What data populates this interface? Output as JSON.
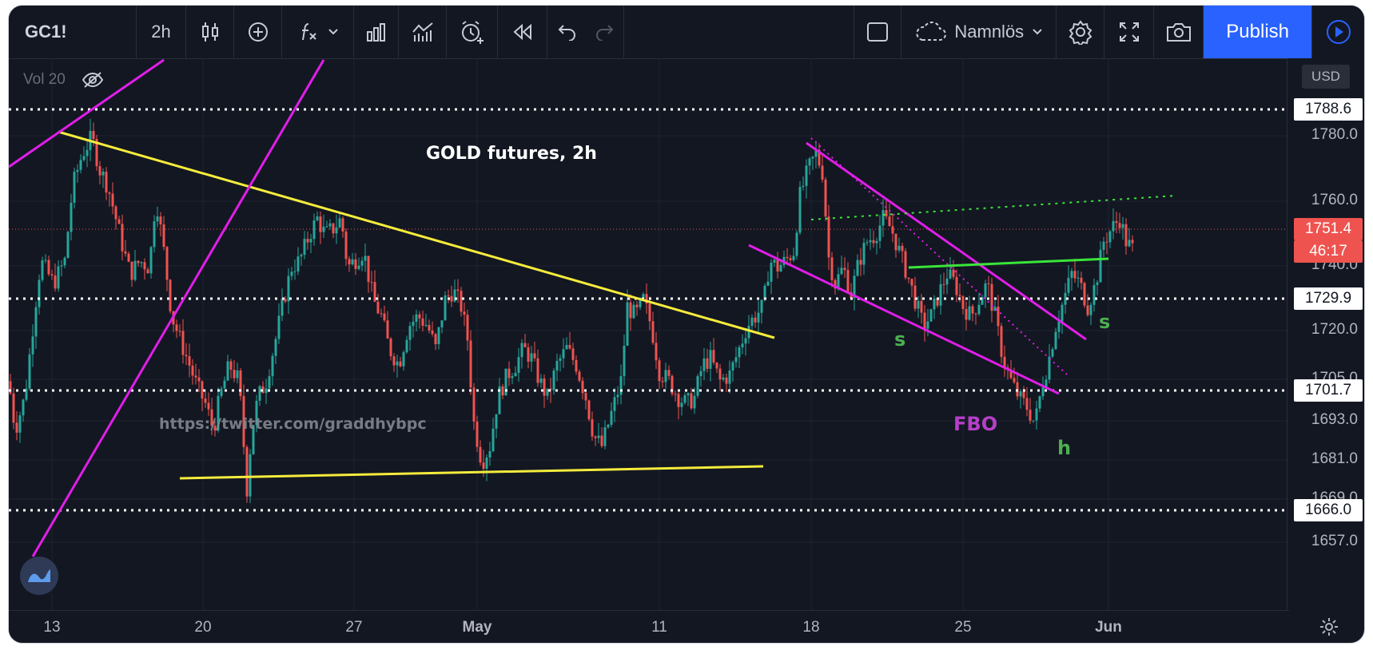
{
  "toolbar": {
    "symbol": "GC1!",
    "interval": "2h",
    "layout_name": "Namnlös",
    "publish_label": "Publish",
    "icons": [
      "candles-icon",
      "add-indicator-icon",
      "fx-icon",
      "chevron-down-icon",
      "bars-icon",
      "templates-icon",
      "alert-icon",
      "replay-icon",
      "undo-icon",
      "redo-icon",
      "square-icon",
      "cloud-icon",
      "settings-icon",
      "fullscreen-icon",
      "camera-icon",
      "play-icon"
    ]
  },
  "legend": {
    "volume_label": "Vol 20"
  },
  "currency": "USD",
  "chart_title": "GOLD futures, 2h",
  "watermark": "https://twitter.com/graddhybpc",
  "annotations": {
    "s1": "s",
    "s2": "s",
    "fbo": "FBO",
    "h": "h"
  },
  "price_axis": {
    "ticks": [
      "1780.0",
      "1760.0",
      "1740.0",
      "1720.0",
      "1705.0",
      "1693.0",
      "1681.0",
      "1669.0",
      "1657.0"
    ],
    "tags": [
      {
        "label": "1788.6",
        "style": "white"
      },
      {
        "label": "1751.4",
        "style": "red"
      },
      {
        "label": "46:17",
        "style": "red"
      },
      {
        "label": "1729.9",
        "style": "white"
      },
      {
        "label": "1701.7",
        "style": "white"
      },
      {
        "label": "1666.0",
        "style": "white"
      }
    ]
  },
  "time_axis": {
    "ticks": [
      "13",
      "20",
      "27",
      "May",
      "11",
      "18",
      "25",
      "Jun"
    ]
  },
  "colors": {
    "up": "#26a69a",
    "down": "#ef5350",
    "yellow": "#f5ec3c",
    "magenta": "#e01ee8",
    "green": "#39e639",
    "accent": "#2962ff"
  }
}
